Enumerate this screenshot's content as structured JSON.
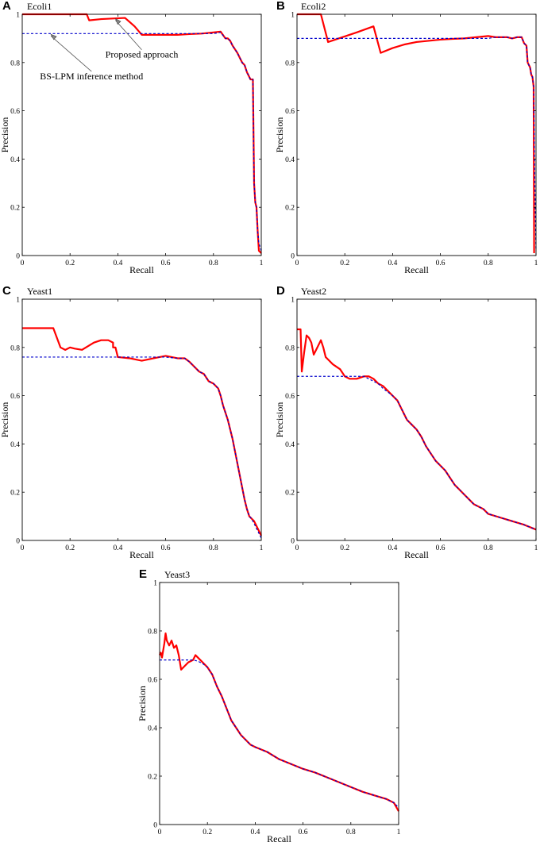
{
  "figure": {
    "background": "#ffffff"
  },
  "colors": {
    "proposed": "#ff0000",
    "bslpm": "#0000cc",
    "axis": "#000000"
  },
  "chart_data": [
    {
      "id": "A",
      "panel_letter": "A",
      "type": "line",
      "title": "Ecoli1",
      "xlabel": "Recall",
      "ylabel": "Precision",
      "xlim": [
        0,
        1
      ],
      "ylim": [
        0,
        1
      ],
      "xticks": [
        0,
        0.2,
        0.4,
        0.6,
        0.8,
        1
      ],
      "xtick_labels": [
        "0",
        "0.2",
        "0.4",
        "0.6",
        "0.8",
        "1"
      ],
      "yticks": [
        0,
        0.2,
        0.4,
        0.6,
        0.8,
        1
      ],
      "ytick_labels": [
        "0",
        "0.2",
        "0.4",
        "0.6",
        "0.8",
        "1"
      ],
      "grid": false,
      "annotations": [
        {
          "text": "Proposed approach",
          "target": [
            0.39,
            0.985
          ],
          "text_at": [
            0.5,
            0.82
          ]
        },
        {
          "text": "BS-LPM inference method",
          "target": [
            0.12,
            0.92
          ],
          "text_at": [
            0.29,
            0.73
          ]
        }
      ],
      "series": [
        {
          "color": "#ff0000",
          "dash": "",
          "width": 2.2,
          "x": [
            0,
            0.27,
            0.28,
            0.33,
            0.43,
            0.47,
            0.5,
            0.55,
            0.6,
            0.65,
            0.7,
            0.75,
            0.8,
            0.83,
            0.85,
            0.86,
            0.87,
            0.88,
            0.89,
            0.9,
            0.91,
            0.92,
            0.93,
            0.94,
            0.95,
            0.955,
            0.96,
            0.965,
            0.97,
            0.975,
            0.98,
            0.985,
            0.99,
            1
          ],
          "y": [
            1,
            1,
            0.975,
            0.98,
            0.985,
            0.95,
            0.915,
            0.915,
            0.915,
            0.915,
            0.918,
            0.92,
            0.925,
            0.928,
            0.9,
            0.9,
            0.89,
            0.87,
            0.855,
            0.84,
            0.82,
            0.8,
            0.79,
            0.76,
            0.74,
            0.73,
            0.73,
            0.73,
            0.3,
            0.22,
            0.2,
            0.1,
            0.02,
            0.01
          ]
        },
        {
          "color": "#0000cc",
          "dash": "3,2.5",
          "width": 1.2,
          "x": [
            0,
            0.8,
            0.83,
            0.85,
            0.86,
            0.87,
            0.88,
            0.89,
            0.9,
            0.91,
            0.92,
            0.93,
            0.94,
            0.95,
            0.955,
            0.96,
            0.965,
            0.97,
            0.975,
            0.98,
            0.985,
            0.99,
            1
          ],
          "y": [
            0.92,
            0.92,
            0.925,
            0.9,
            0.9,
            0.89,
            0.87,
            0.855,
            0.84,
            0.82,
            0.8,
            0.79,
            0.76,
            0.74,
            0.73,
            0.73,
            0.73,
            0.3,
            0.22,
            0.2,
            0.1,
            0.05,
            0.02
          ]
        }
      ]
    },
    {
      "id": "B",
      "panel_letter": "B",
      "type": "line",
      "title": "Ecoli2",
      "xlabel": "Recall",
      "ylabel": "Precision",
      "xlim": [
        0,
        1
      ],
      "ylim": [
        0,
        1
      ],
      "xticks": [
        0,
        0.2,
        0.4,
        0.6,
        0.8,
        1
      ],
      "xtick_labels": [
        "0",
        "0.2",
        "0.4",
        "0.6",
        "0.8",
        "1"
      ],
      "yticks": [
        0,
        0.2,
        0.4,
        0.6,
        0.8,
        1
      ],
      "ytick_labels": [
        "0",
        "0.2",
        "0.4",
        "0.6",
        "0.8",
        "1"
      ],
      "grid": false,
      "annotations": [],
      "series": [
        {
          "color": "#ff0000",
          "dash": "",
          "width": 2.2,
          "x": [
            0,
            0.1,
            0.13,
            0.25,
            0.32,
            0.35,
            0.4,
            0.45,
            0.5,
            0.55,
            0.6,
            0.65,
            0.7,
            0.75,
            0.8,
            0.83,
            0.85,
            0.88,
            0.9,
            0.92,
            0.94,
            0.95,
            0.96,
            0.965,
            0.97,
            0.975,
            0.98,
            0.985,
            0.99,
            0.992
          ],
          "y": [
            1,
            1,
            0.885,
            0.925,
            0.95,
            0.84,
            0.86,
            0.875,
            0.885,
            0.89,
            0.895,
            0.898,
            0.9,
            0.905,
            0.91,
            0.905,
            0.905,
            0.905,
            0.9,
            0.905,
            0.905,
            0.88,
            0.87,
            0.8,
            0.79,
            0.78,
            0.75,
            0.74,
            0.7,
            0.01
          ]
        },
        {
          "color": "#0000cc",
          "dash": "3,2.5",
          "width": 1.2,
          "x": [
            0,
            0.8,
            0.83,
            0.85,
            0.88,
            0.9,
            0.92,
            0.94,
            0.95,
            0.96,
            0.965,
            0.97,
            0.975,
            0.98,
            0.985,
            0.99,
            0.995,
            1
          ],
          "y": [
            0.9,
            0.9,
            0.905,
            0.905,
            0.905,
            0.9,
            0.905,
            0.905,
            0.88,
            0.87,
            0.8,
            0.79,
            0.78,
            0.75,
            0.74,
            0.7,
            0.3,
            0.02
          ]
        }
      ]
    },
    {
      "id": "C",
      "panel_letter": "C",
      "type": "line",
      "title": "Yeast1",
      "xlabel": "Recall",
      "ylabel": "Precision",
      "xlim": [
        0,
        1
      ],
      "ylim": [
        0,
        1
      ],
      "xticks": [
        0,
        0.2,
        0.4,
        0.6,
        0.8,
        1
      ],
      "xtick_labels": [
        "0",
        "0.2",
        "0.4",
        "0.6",
        "0.8",
        "1"
      ],
      "yticks": [
        0,
        0.2,
        0.4,
        0.6,
        0.8,
        1
      ],
      "ytick_labels": [
        "0",
        "0.2",
        "0.4",
        "0.6",
        "0.8",
        "1"
      ],
      "grid": false,
      "annotations": [],
      "series": [
        {
          "color": "#ff0000",
          "dash": "",
          "width": 2.2,
          "x": [
            0,
            0.13,
            0.16,
            0.18,
            0.2,
            0.22,
            0.25,
            0.3,
            0.33,
            0.36,
            0.38,
            0.38,
            0.39,
            0.4,
            0.45,
            0.5,
            0.55,
            0.6,
            0.65,
            0.68,
            0.7,
            0.72,
            0.74,
            0.76,
            0.78,
            0.8,
            0.82,
            0.83,
            0.84,
            0.85,
            0.86,
            0.87,
            0.88,
            0.89,
            0.9,
            0.91,
            0.92,
            0.93,
            0.94,
            0.95,
            0.96,
            0.97,
            0.98,
            0.99,
            1
          ],
          "y": [
            0.88,
            0.88,
            0.8,
            0.79,
            0.8,
            0.795,
            0.79,
            0.82,
            0.83,
            0.83,
            0.82,
            0.8,
            0.8,
            0.76,
            0.755,
            0.745,
            0.755,
            0.765,
            0.755,
            0.755,
            0.74,
            0.72,
            0.7,
            0.69,
            0.66,
            0.65,
            0.63,
            0.6,
            0.56,
            0.53,
            0.5,
            0.46,
            0.42,
            0.37,
            0.32,
            0.27,
            0.22,
            0.17,
            0.13,
            0.1,
            0.09,
            0.08,
            0.06,
            0.04,
            0.02
          ]
        },
        {
          "color": "#0000cc",
          "dash": "3,2.5",
          "width": 1.2,
          "x": [
            0,
            0.6,
            0.65,
            0.68,
            0.7,
            0.72,
            0.74,
            0.76,
            0.78,
            0.8,
            0.82,
            0.83,
            0.84,
            0.85,
            0.86,
            0.87,
            0.88,
            0.89,
            0.9,
            0.91,
            0.92,
            0.93,
            0.94,
            0.95,
            0.96,
            0.97,
            0.98,
            0.99,
            1
          ],
          "y": [
            0.76,
            0.76,
            0.755,
            0.755,
            0.74,
            0.72,
            0.7,
            0.69,
            0.66,
            0.65,
            0.63,
            0.6,
            0.56,
            0.53,
            0.5,
            0.46,
            0.42,
            0.37,
            0.32,
            0.27,
            0.22,
            0.17,
            0.13,
            0.1,
            0.09,
            0.07,
            0.05,
            0.03,
            0.01
          ]
        }
      ]
    },
    {
      "id": "D",
      "panel_letter": "D",
      "type": "line",
      "title": "Yeast2",
      "xlabel": "Recall",
      "ylabel": "Precision",
      "xlim": [
        0,
        1
      ],
      "ylim": [
        0,
        1
      ],
      "xticks": [
        0,
        0.2,
        0.4,
        0.6,
        0.8,
        1
      ],
      "xtick_labels": [
        "0",
        "0.2",
        "0.4",
        "0.6",
        "0.8",
        "1"
      ],
      "yticks": [
        0,
        0.2,
        0.4,
        0.6,
        0.8,
        1
      ],
      "ytick_labels": [
        "0",
        "0.2",
        "0.4",
        "0.6",
        "0.8",
        "1"
      ],
      "grid": false,
      "annotations": [],
      "series": [
        {
          "color": "#ff0000",
          "dash": "",
          "width": 2.2,
          "x": [
            0,
            0.015,
            0.02,
            0.03,
            0.04,
            0.05,
            0.06,
            0.07,
            0.08,
            0.1,
            0.11,
            0.12,
            0.13,
            0.15,
            0.18,
            0.2,
            0.22,
            0.25,
            0.28,
            0.3,
            0.32,
            0.34,
            0.36,
            0.38,
            0.4,
            0.42,
            0.44,
            0.46,
            0.48,
            0.5,
            0.52,
            0.54,
            0.56,
            0.58,
            0.6,
            0.62,
            0.64,
            0.66,
            0.68,
            0.7,
            0.72,
            0.74,
            0.76,
            0.78,
            0.8,
            0.85,
            0.9,
            0.95,
            1
          ],
          "y": [
            0.875,
            0.875,
            0.7,
            0.78,
            0.85,
            0.84,
            0.82,
            0.77,
            0.79,
            0.83,
            0.8,
            0.76,
            0.75,
            0.73,
            0.71,
            0.68,
            0.67,
            0.67,
            0.68,
            0.68,
            0.67,
            0.65,
            0.64,
            0.62,
            0.6,
            0.58,
            0.54,
            0.5,
            0.48,
            0.46,
            0.43,
            0.39,
            0.36,
            0.33,
            0.31,
            0.29,
            0.26,
            0.23,
            0.21,
            0.19,
            0.17,
            0.15,
            0.14,
            0.13,
            0.11,
            0.095,
            0.08,
            0.065,
            0.045
          ]
        },
        {
          "color": "#0000cc",
          "dash": "3,2.5",
          "width": 1.2,
          "x": [
            0,
            0.28,
            0.3,
            0.32,
            0.34,
            0.36,
            0.38,
            0.4,
            0.42,
            0.44,
            0.46,
            0.48,
            0.5,
            0.52,
            0.54,
            0.56,
            0.58,
            0.6,
            0.62,
            0.64,
            0.66,
            0.68,
            0.7,
            0.72,
            0.74,
            0.76,
            0.78,
            0.8,
            0.85,
            0.9,
            0.95,
            1
          ],
          "y": [
            0.68,
            0.68,
            0.67,
            0.66,
            0.65,
            0.63,
            0.615,
            0.6,
            0.58,
            0.54,
            0.5,
            0.48,
            0.46,
            0.43,
            0.39,
            0.36,
            0.33,
            0.31,
            0.29,
            0.26,
            0.23,
            0.21,
            0.19,
            0.17,
            0.15,
            0.14,
            0.13,
            0.11,
            0.095,
            0.08,
            0.065,
            0.045
          ]
        }
      ]
    },
    {
      "id": "E",
      "panel_letter": "E",
      "type": "line",
      "title": "Yeast3",
      "xlabel": "Recall",
      "ylabel": "Precision",
      "xlim": [
        0,
        1
      ],
      "ylim": [
        0,
        1
      ],
      "xticks": [
        0,
        0.2,
        0.4,
        0.6,
        0.8,
        1
      ],
      "xtick_labels": [
        "0",
        "0.2",
        "0.4",
        "0.6",
        "0.8",
        "1"
      ],
      "yticks": [
        0,
        0.2,
        0.4,
        0.6,
        0.8,
        1
      ],
      "ytick_labels": [
        "0",
        "0.2",
        "0.4",
        "0.6",
        "0.8",
        "1"
      ],
      "grid": false,
      "annotations": [],
      "series": [
        {
          "color": "#ff0000",
          "dash": "",
          "width": 2.2,
          "x": [
            0,
            0.005,
            0.01,
            0.02,
            0.025,
            0.03,
            0.04,
            0.05,
            0.06,
            0.07,
            0.08,
            0.09,
            0.1,
            0.12,
            0.14,
            0.15,
            0.16,
            0.18,
            0.2,
            0.22,
            0.24,
            0.26,
            0.28,
            0.3,
            0.32,
            0.34,
            0.36,
            0.38,
            0.4,
            0.45,
            0.5,
            0.55,
            0.6,
            0.65,
            0.7,
            0.75,
            0.8,
            0.85,
            0.9,
            0.95,
            0.98,
            1
          ],
          "y": [
            0.7,
            0.71,
            0.69,
            0.75,
            0.79,
            0.76,
            0.74,
            0.76,
            0.73,
            0.74,
            0.7,
            0.64,
            0.65,
            0.67,
            0.68,
            0.7,
            0.69,
            0.67,
            0.65,
            0.62,
            0.57,
            0.53,
            0.48,
            0.43,
            0.4,
            0.37,
            0.35,
            0.33,
            0.32,
            0.3,
            0.27,
            0.25,
            0.23,
            0.215,
            0.195,
            0.175,
            0.155,
            0.135,
            0.12,
            0.105,
            0.09,
            0.055
          ]
        },
        {
          "color": "#0000cc",
          "dash": "3,2.5",
          "width": 1.2,
          "x": [
            0,
            0.14,
            0.16,
            0.18,
            0.2,
            0.22,
            0.24,
            0.26,
            0.28,
            0.3,
            0.32,
            0.34,
            0.36,
            0.38,
            0.4,
            0.45,
            0.5,
            0.55,
            0.6,
            0.65,
            0.7,
            0.75,
            0.8,
            0.85,
            0.9,
            0.95,
            0.98,
            1
          ],
          "y": [
            0.68,
            0.68,
            0.675,
            0.665,
            0.65,
            0.62,
            0.57,
            0.53,
            0.48,
            0.43,
            0.4,
            0.37,
            0.35,
            0.33,
            0.32,
            0.3,
            0.27,
            0.25,
            0.23,
            0.215,
            0.195,
            0.175,
            0.155,
            0.135,
            0.12,
            0.105,
            0.09,
            0.07
          ]
        }
      ]
    }
  ]
}
